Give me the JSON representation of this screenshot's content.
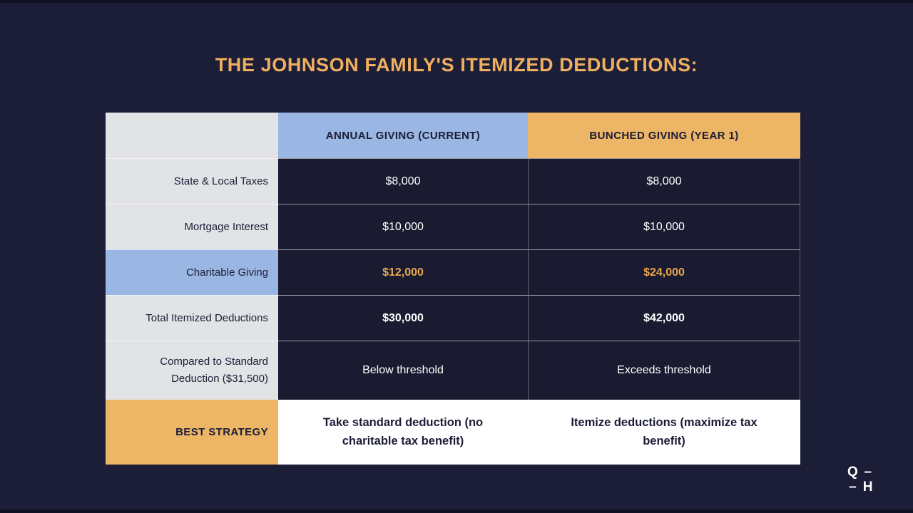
{
  "chart_data": {
    "type": "table",
    "title": "THE JOHNSON FAMILY'S ITEMIZED DEDUCTIONS:",
    "columns": [
      "",
      "ANNUAL GIVING (CURRENT)",
      "BUNCHED GIVING (YEAR 1)"
    ],
    "rows": [
      [
        "State & Local Taxes",
        "$8,000",
        "$8,000"
      ],
      [
        "Mortgage Interest",
        "$10,000",
        "$10,000"
      ],
      [
        "Charitable Giving",
        "$12,000",
        "$24,000"
      ],
      [
        "Total Itemized Deductions",
        "$30,000",
        "$42,000"
      ],
      [
        "Compared to Standard Deduction ($31,500)",
        "Below threshold",
        "Exceeds threshold"
      ],
      [
        "BEST STRATEGY",
        "Take standard deduction (no charitable tax benefit)",
        "Itemize deductions (maximize tax benefit)"
      ]
    ],
    "layout_hints": {
      "label_column_alignment": "right",
      "value_alignment": "center",
      "highlighted_row": "Charitable Giving",
      "bold_rows": [
        "Total Itemized Deductions",
        "BEST STRATEGY"
      ]
    }
  },
  "colors": {
    "page_background": "#1c1e38",
    "cell_background": "#1a1b31",
    "title_orange": "#efaf5e",
    "header_blue": "#9ab7e3",
    "header_orange": "#edb566",
    "label_gray": "#e2e3e6",
    "value_orange": "#e8a74e",
    "navy_text": "#1b1d36",
    "white": "#ffffff"
  },
  "logo": {
    "top_left": "Q",
    "top_right": "–",
    "bottom_left": "–",
    "bottom_right": "H"
  }
}
